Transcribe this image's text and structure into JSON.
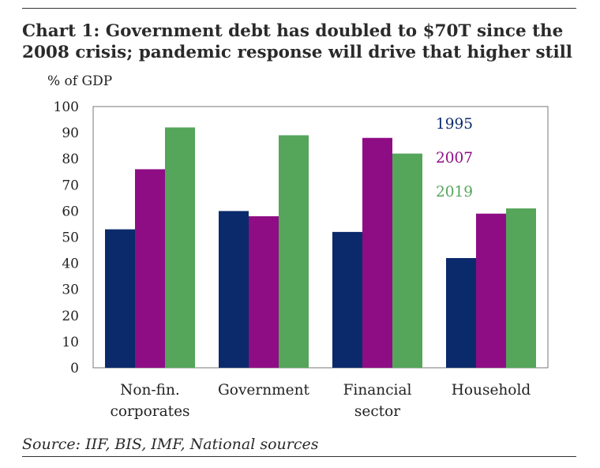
{
  "title": "Chart 1: Government debt has doubled to $70T since the 2008 crisis; pandemic response will drive that higher still",
  "source": "Source: IIF, BIS, IMF, National sources",
  "chart_data": {
    "type": "bar",
    "title": "Chart 1: Government debt has doubled to $70T since the 2008 crisis; pandemic response will drive that higher still",
    "ylabel": "% of GDP",
    "xlabel": "",
    "ylim": [
      0,
      100
    ],
    "yticks": [
      0,
      10,
      20,
      30,
      40,
      50,
      60,
      70,
      80,
      90,
      100
    ],
    "categories": [
      [
        "Non-fin.",
        "corporates"
      ],
      [
        "Government"
      ],
      [
        "Financial",
        "sector"
      ],
      [
        "Household"
      ]
    ],
    "series": [
      {
        "name": "1995",
        "color": "#0b2a6b",
        "values": [
          53,
          60,
          52,
          42
        ]
      },
      {
        "name": "2007",
        "color": "#8e0d84",
        "values": [
          76,
          58,
          88,
          59
        ]
      },
      {
        "name": "2019",
        "color": "#55a55a",
        "values": [
          92,
          89,
          82,
          61
        ]
      }
    ],
    "legend_position": "top-right-inside",
    "grid": false
  }
}
